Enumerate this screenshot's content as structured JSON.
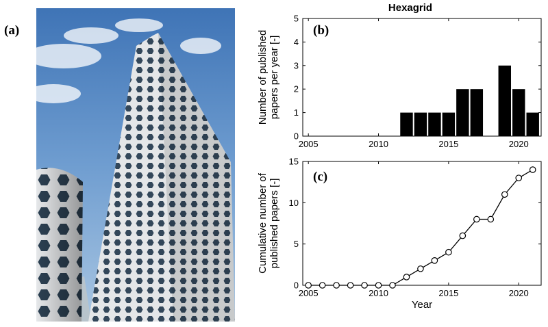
{
  "labels": {
    "a": "(a)",
    "b": "(b)",
    "c": "(c)"
  },
  "photo": {
    "subject": "hexagrid-facade-skyscraper-photo",
    "sky_color": "#5f8ec4",
    "facade_color": "#e2e4e6",
    "glass_color": "#2a3d4e"
  },
  "chart_data": [
    {
      "type": "bar",
      "title": "Hexagrid",
      "ylabel": "Number of published papers per year [-]",
      "xlabel": "",
      "x": [
        2012,
        2013,
        2014,
        2015,
        2016,
        2017,
        2019,
        2020,
        2021
      ],
      "values": [
        1,
        1,
        1,
        1,
        2,
        2,
        3,
        2,
        1
      ],
      "xlim": [
        2004.6,
        2021.6
      ],
      "ylim": [
        0,
        5
      ],
      "xticks": [
        2005,
        2010,
        2015,
        2020
      ],
      "yticks": [
        0,
        1,
        2,
        3,
        4,
        5
      ],
      "bar_color": "#000000",
      "grid": false
    },
    {
      "type": "line",
      "title": "",
      "ylabel": "Cumulative number of published papers [-]",
      "xlabel": "Year",
      "x": [
        2005,
        2006,
        2007,
        2008,
        2009,
        2010,
        2011,
        2012,
        2013,
        2014,
        2015,
        2016,
        2017,
        2018,
        2019,
        2020,
        2021
      ],
      "y": [
        0,
        0,
        0,
        0,
        0,
        0,
        0,
        1,
        2,
        3,
        4,
        6,
        8,
        8,
        11,
        13,
        14
      ],
      "marker": "circle",
      "xlim": [
        2004.6,
        2021.6
      ],
      "ylim": [
        0,
        15
      ],
      "xticks": [
        2005,
        2010,
        2015,
        2020
      ],
      "yticks": [
        0,
        5,
        10,
        15
      ],
      "line_color": "#000000",
      "grid": false
    }
  ]
}
